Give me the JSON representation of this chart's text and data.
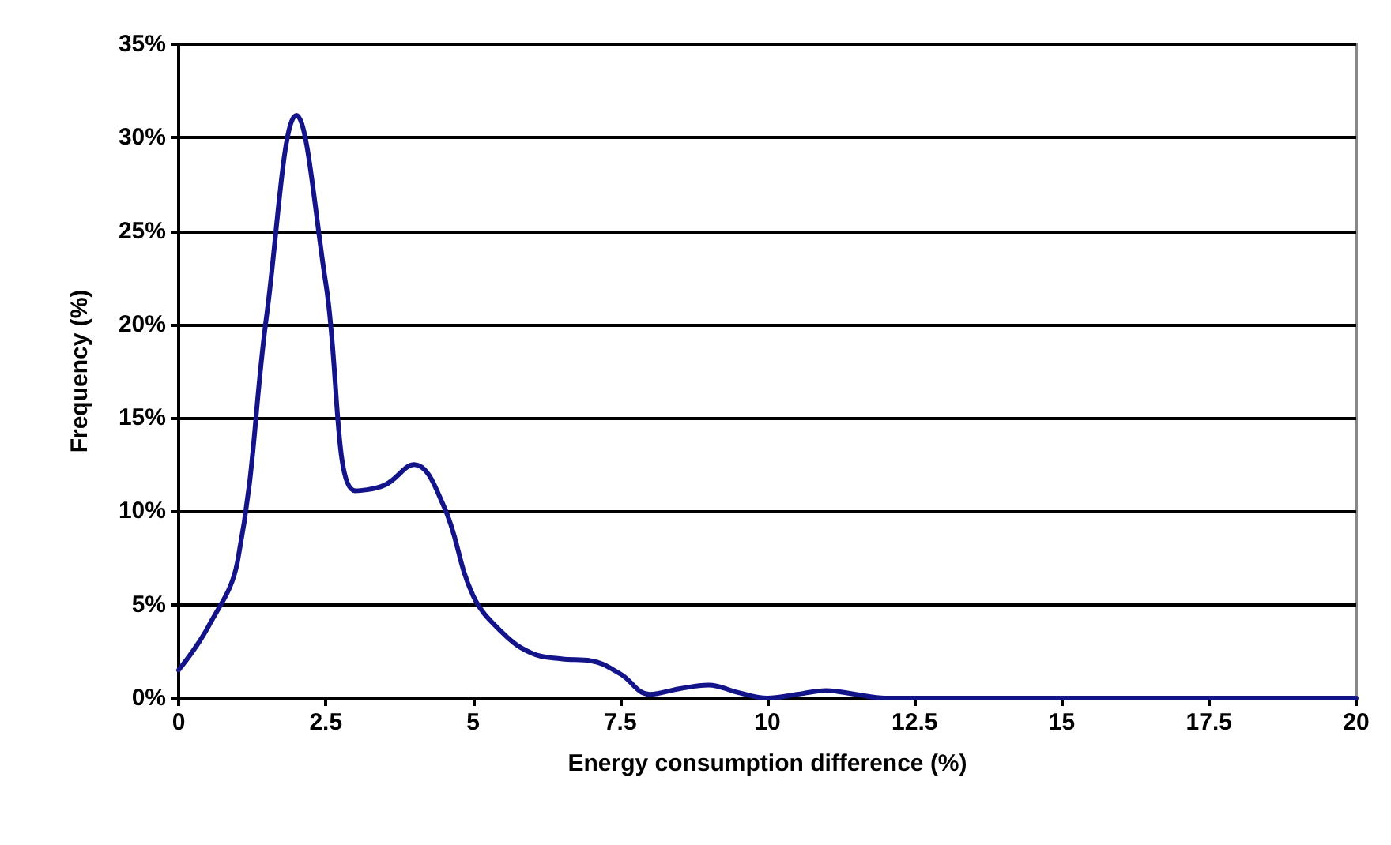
{
  "chart_data": {
    "type": "line",
    "xlabel": "Energy consumption difference (%)",
    "ylabel": "Frequency (%)",
    "x": [
      0,
      0.5,
      1,
      1.5,
      2,
      2.5,
      3,
      3.5,
      4,
      4.5,
      5,
      5.5,
      6,
      6.5,
      7,
      7.5,
      8,
      8.5,
      9,
      9.5,
      10,
      10.5,
      11,
      11.5,
      12,
      13,
      14,
      15,
      16,
      17,
      18,
      19,
      20
    ],
    "series": [
      {
        "color": "#14148a",
        "values": [
          1.5,
          3.8,
          7.3,
          20.6,
          31.2,
          22.2,
          11.1,
          11.4,
          12.5,
          10.3,
          5.5,
          3.5,
          2.4,
          2.1,
          2.0,
          1.3,
          0.2,
          0.5,
          0.7,
          0.3,
          0,
          0.2,
          0.4,
          0.2,
          0,
          0,
          0,
          0,
          0,
          0,
          0,
          0,
          0
        ]
      }
    ],
    "xlim": [
      0,
      20
    ],
    "xticks": [
      0,
      2.5,
      5,
      7.5,
      10,
      12.5,
      15,
      17.5,
      20
    ],
    "ylim": [
      0,
      35
    ],
    "yticks": [
      {
        "value": 0,
        "label": "0%"
      },
      {
        "value": 5,
        "label": "5%"
      },
      {
        "value": 10,
        "label": "10%"
      },
      {
        "value": 15,
        "label": "15%"
      },
      {
        "value": 20,
        "label": "20%"
      },
      {
        "value": 25,
        "label": "25%"
      },
      {
        "value": 30,
        "label": "30%"
      },
      {
        "value": 35,
        "label": "35%"
      }
    ],
    "grid": "y",
    "marker": "none",
    "line_style": "solid"
  }
}
